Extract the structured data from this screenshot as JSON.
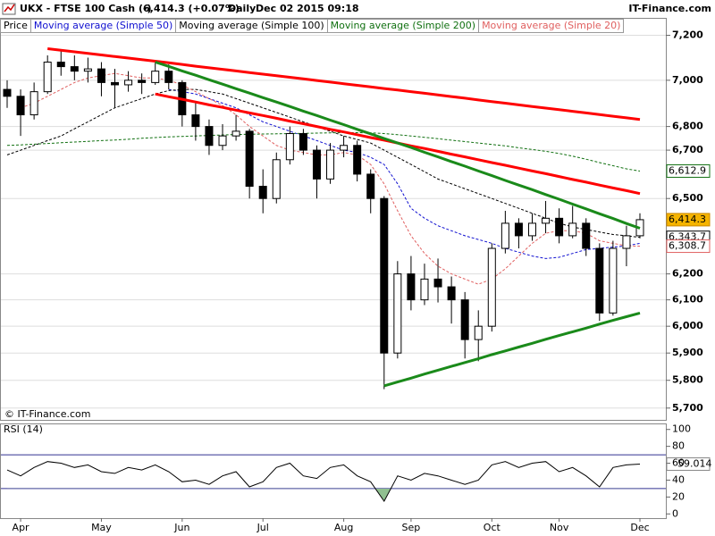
{
  "header": {
    "symbol": "UKX - FTSE 100 Cash (-)",
    "quote": "6,414.3 (+0.07%)",
    "period": "Daily",
    "datetime": "Dec 02 2015 09:18",
    "brand": "IT-Finance.com"
  },
  "chart_data": [
    {
      "type": "candlestick",
      "price_legend": "Price",
      "copyright": "© IT-Finance.com",
      "log_scale": true,
      "grid": true,
      "categories": [
        null,
        "Apr",
        null,
        null,
        null,
        null,
        null,
        "May",
        null,
        null,
        null,
        null,
        null,
        "Jun",
        null,
        null,
        null,
        null,
        null,
        "Jul",
        null,
        null,
        null,
        null,
        null,
        "Aug",
        null,
        null,
        null,
        null,
        "Sep",
        null,
        null,
        null,
        null,
        null,
        "Oct",
        null,
        null,
        null,
        null,
        "Nov",
        null,
        null,
        null,
        null,
        null,
        "Dec"
      ],
      "open": [
        6960,
        6930,
        6850,
        6950,
        7080,
        7060,
        7040,
        7050,
        6990,
        6980,
        7000,
        6990,
        7040,
        6990,
        6850,
        6800,
        6720,
        6760,
        6780,
        6550,
        6500,
        6660,
        6770,
        6700,
        6580,
        6700,
        6720,
        6600,
        6500,
        5900,
        6200,
        6100,
        6180,
        6150,
        6100,
        5950,
        6000,
        6300,
        6400,
        6350,
        6400,
        6420,
        6350,
        6400,
        6300,
        6050,
        6300,
        6350
      ],
      "high": [
        7000,
        6960,
        6990,
        7110,
        7130,
        7110,
        7100,
        7080,
        7050,
        7040,
        7030,
        7080,
        7070,
        7000,
        6900,
        6830,
        6810,
        6850,
        6790,
        6620,
        6690,
        6800,
        6790,
        6720,
        6730,
        6760,
        6740,
        6620,
        6510,
        6250,
        6270,
        6240,
        6260,
        6190,
        6130,
        6060,
        6320,
        6450,
        6420,
        6440,
        6490,
        6460,
        6470,
        6420,
        6320,
        6330,
        6390,
        6440
      ],
      "low": [
        6880,
        6760,
        6830,
        6940,
        7020,
        7000,
        6990,
        6930,
        6880,
        6950,
        6940,
        6980,
        6960,
        6800,
        6740,
        6680,
        6700,
        6740,
        6500,
        6440,
        6480,
        6640,
        6680,
        6500,
        6560,
        6670,
        6570,
        6440,
        5768,
        5880,
        6060,
        6080,
        6090,
        6010,
        5880,
        5870,
        5980,
        6280,
        6300,
        6330,
        6360,
        6320,
        6340,
        6270,
        6020,
        6040,
        6230,
        6340
      ],
      "close": [
        6930,
        6850,
        6950,
        7080,
        7060,
        7040,
        7050,
        6990,
        6980,
        7000,
        6990,
        7040,
        6990,
        6850,
        6800,
        6720,
        6760,
        6780,
        6550,
        6500,
        6660,
        6770,
        6700,
        6580,
        6700,
        6720,
        6600,
        6500,
        5900,
        6200,
        6100,
        6180,
        6150,
        6100,
        5950,
        6000,
        6300,
        6400,
        6350,
        6400,
        6420,
        6350,
        6400,
        6300,
        6050,
        6300,
        6350,
        6414.3
      ],
      "last_tag": "6,414.3",
      "tag_color": "#f5b400",
      "series": [
        {
          "name": "Moving average (Simple 50)",
          "color": "#1010d0",
          "values": [
            null,
            null,
            null,
            null,
            null,
            null,
            null,
            null,
            null,
            null,
            null,
            null,
            6960,
            6950,
            6940,
            6920,
            6900,
            6880,
            6850,
            6820,
            6800,
            6780,
            6760,
            6740,
            6720,
            6700,
            6690,
            6670,
            6640,
            6560,
            6460,
            6420,
            6390,
            6370,
            6350,
            6335,
            6320,
            6300,
            6285,
            6270,
            6260,
            6265,
            6280,
            6295,
            6300,
            6305,
            6310,
            6320
          ]
        },
        {
          "name": "Moving average (Simple 100)",
          "color": "#000000",
          "last_tag": "6,343.7",
          "values": [
            6680,
            6700,
            6720,
            6740,
            6760,
            6790,
            6820,
            6850,
            6880,
            6900,
            6920,
            6940,
            6955,
            6960,
            6960,
            6950,
            6940,
            6920,
            6900,
            6880,
            6860,
            6840,
            6820,
            6800,
            6780,
            6760,
            6745,
            6730,
            6700,
            6670,
            6640,
            6610,
            6580,
            6560,
            6540,
            6520,
            6500,
            6480,
            6460,
            6440,
            6420,
            6400,
            6385,
            6375,
            6365,
            6355,
            6350,
            6343.7
          ]
        },
        {
          "name": "Moving average (Simple 200)",
          "color": "#107010",
          "last_tag": "6,612.9",
          "values": [
            6720,
            6722,
            6725,
            6728,
            6731,
            6734,
            6737,
            6740,
            6743,
            6746,
            6750,
            6753,
            6756,
            6758,
            6760,
            6762,
            6764,
            6766,
            6767,
            6768,
            6769,
            6770,
            6771,
            6772,
            6773,
            6774,
            6774,
            6773,
            6770,
            6765,
            6760,
            6754,
            6748,
            6742,
            6736,
            6730,
            6724,
            6718,
            6710,
            6703,
            6695,
            6686,
            6675,
            6662,
            6648,
            6635,
            6622,
            6612.9
          ]
        },
        {
          "name": "Moving average (Simple 20)",
          "color": "#e06060",
          "last_tag": "6,308.7",
          "values": [
            null,
            6880,
            6900,
            6930,
            6960,
            6990,
            7010,
            7020,
            7030,
            7020,
            7010,
            7010,
            7000,
            6980,
            6950,
            6920,
            6890,
            6850,
            6800,
            6760,
            6720,
            6700,
            6690,
            6680,
            6680,
            6690,
            6680,
            6640,
            6560,
            6450,
            6350,
            6280,
            6230,
            6200,
            6180,
            6160,
            6180,
            6220,
            6270,
            6320,
            6360,
            6370,
            6370,
            6360,
            6330,
            6320,
            6310,
            6308.7
          ]
        }
      ],
      "trendlines": [
        {
          "color": "#ff0000",
          "values": [
            null,
            null,
            null,
            7140,
            7133,
            7126,
            7119,
            7112,
            7105,
            7098,
            7091,
            7084,
            7077,
            7070,
            7062,
            7055,
            7048,
            7041,
            7034,
            7027,
            7020,
            7013,
            7006,
            6999,
            6992,
            6985,
            6978,
            6971,
            6964,
            6957,
            6950,
            6943,
            6936,
            6929,
            6922,
            6914,
            6907,
            6900,
            6893,
            6886,
            6879,
            6872,
            6865,
            6858,
            6851,
            6844,
            6837,
            6830
          ]
        },
        {
          "color": "#ff0000",
          "values": [
            null,
            null,
            null,
            null,
            null,
            null,
            null,
            null,
            null,
            null,
            null,
            6940,
            6928,
            6917,
            6905,
            6893,
            6882,
            6870,
            6858,
            6847,
            6835,
            6823,
            6812,
            6800,
            6788,
            6777,
            6765,
            6753,
            6742,
            6730,
            6718,
            6707,
            6695,
            6683,
            6672,
            6660,
            6648,
            6637,
            6625,
            6613,
            6602,
            6590,
            6578,
            6567,
            6555,
            6543,
            6532,
            6520
          ]
        },
        {
          "color": "#1a8a1a",
          "values": [
            null,
            null,
            null,
            null,
            null,
            null,
            null,
            null,
            null,
            null,
            null,
            7080,
            7061,
            7041,
            7022,
            7002,
            6983,
            6963,
            6944,
            6924,
            6905,
            6886,
            6866,
            6847,
            6827,
            6808,
            6788,
            6769,
            6749,
            6730,
            6711,
            6691,
            6672,
            6652,
            6633,
            6613,
            6594,
            6574,
            6555,
            6536,
            6516,
            6497,
            6477,
            6458,
            6438,
            6419,
            6399,
            6380
          ]
        },
        {
          "color": "#1a8a1a",
          "values": [
            null,
            null,
            null,
            null,
            null,
            null,
            null,
            null,
            null,
            null,
            null,
            null,
            null,
            null,
            null,
            null,
            null,
            null,
            null,
            null,
            null,
            null,
            null,
            null,
            null,
            null,
            null,
            null,
            5780,
            5794,
            5808,
            5823,
            5837,
            5851,
            5865,
            5879,
            5894,
            5908,
            5922,
            5936,
            5951,
            5965,
            5979,
            5993,
            6008,
            6022,
            6036,
            6050
          ]
        }
      ],
      "ylim": [
        5658,
        7271
      ],
      "yticks": [
        {
          "value": 5700,
          "label": "5,700"
        },
        {
          "value": 5800,
          "label": "5,800"
        },
        {
          "value": 5900,
          "label": "5,900"
        },
        {
          "value": 6000,
          "label": "6,000"
        },
        {
          "value": 6100,
          "label": "6,100"
        },
        {
          "value": 6200,
          "label": "6,200"
        },
        {
          "value": 6500,
          "label": "6,500"
        },
        {
          "value": 6700,
          "label": "6,700"
        },
        {
          "value": 6800,
          "label": "6,800"
        },
        {
          "value": 7000,
          "label": "7,000"
        },
        {
          "value": 7200,
          "label": "7,200"
        }
      ]
    },
    {
      "type": "line",
      "title": "RSI (14)",
      "color": "#000000",
      "fill_color": "#90c090",
      "level_color": "#303090",
      "levels": [
        30,
        70
      ],
      "values": [
        52,
        45,
        55,
        62,
        60,
        55,
        58,
        50,
        48,
        55,
        52,
        58,
        50,
        38,
        40,
        35,
        45,
        50,
        32,
        38,
        55,
        60,
        45,
        42,
        55,
        58,
        45,
        38,
        15,
        45,
        40,
        48,
        45,
        40,
        35,
        40,
        58,
        62,
        55,
        60,
        62,
        50,
        55,
        45,
        32,
        55,
        58,
        59.014
      ],
      "last_tag": "59.014",
      "ylim": [
        -5,
        105
      ],
      "yticks": [
        0,
        20,
        40,
        60,
        80,
        100
      ]
    }
  ]
}
